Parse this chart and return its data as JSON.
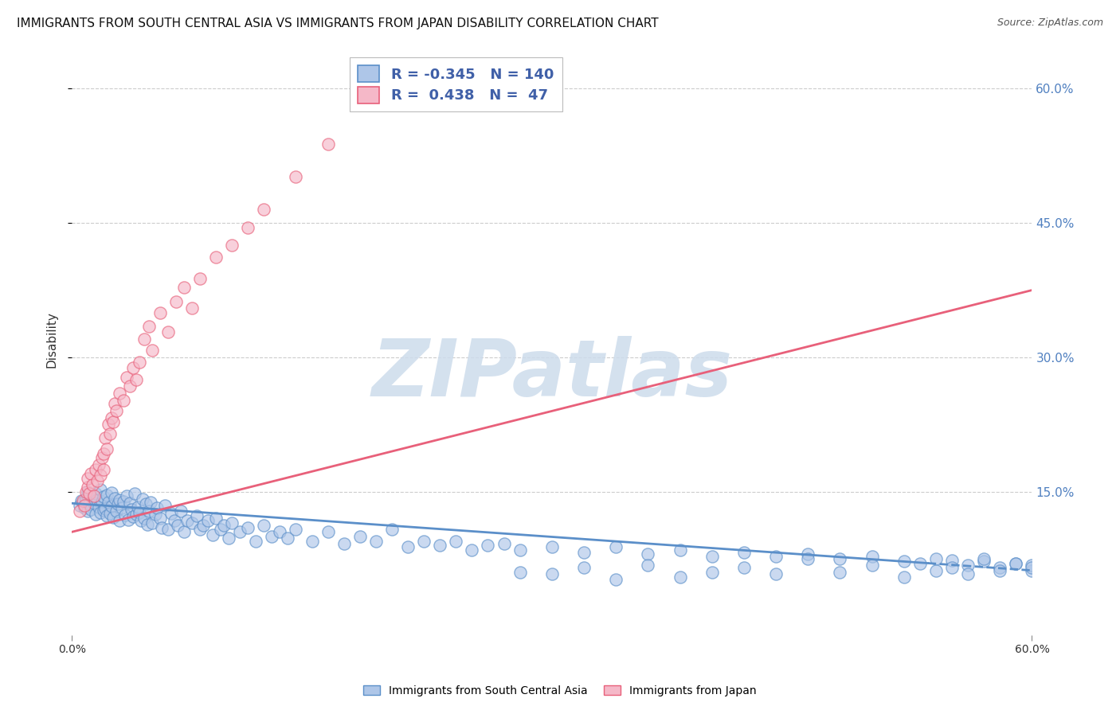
{
  "title": "IMMIGRANTS FROM SOUTH CENTRAL ASIA VS IMMIGRANTS FROM JAPAN DISABILITY CORRELATION CHART",
  "source": "Source: ZipAtlas.com",
  "ylabel": "Disability",
  "ytick_values": [
    0.15,
    0.3,
    0.45,
    0.6
  ],
  "ytick_labels": [
    "15.0%",
    "30.0%",
    "45.0%",
    "60.0%"
  ],
  "xlim": [
    0.0,
    0.6
  ],
  "ylim": [
    -0.01,
    0.65
  ],
  "legend_blue_r": "-0.345",
  "legend_blue_n": "140",
  "legend_pink_r": "0.438",
  "legend_pink_n": "47",
  "blue_face_color": "#aec6e8",
  "blue_edge_color": "#5b8fc9",
  "pink_face_color": "#f5b8c8",
  "pink_edge_color": "#e8607a",
  "watermark": "ZIPatlas",
  "watermark_color": "#cddcec",
  "legend_text_color": "#4060a8",
  "blue_scatter_x": [
    0.005,
    0.006,
    0.007,
    0.008,
    0.009,
    0.01,
    0.01,
    0.01,
    0.011,
    0.012,
    0.013,
    0.014,
    0.015,
    0.015,
    0.016,
    0.017,
    0.018,
    0.018,
    0.019,
    0.02,
    0.02,
    0.021,
    0.022,
    0.022,
    0.023,
    0.024,
    0.025,
    0.025,
    0.026,
    0.027,
    0.028,
    0.029,
    0.03,
    0.03,
    0.031,
    0.032,
    0.033,
    0.034,
    0.035,
    0.036,
    0.037,
    0.038,
    0.039,
    0.04,
    0.041,
    0.042,
    0.043,
    0.044,
    0.045,
    0.046,
    0.047,
    0.048,
    0.049,
    0.05,
    0.052,
    0.053,
    0.055,
    0.056,
    0.058,
    0.06,
    0.062,
    0.064,
    0.066,
    0.068,
    0.07,
    0.072,
    0.075,
    0.078,
    0.08,
    0.082,
    0.085,
    0.088,
    0.09,
    0.093,
    0.095,
    0.098,
    0.1,
    0.105,
    0.11,
    0.115,
    0.12,
    0.125,
    0.13,
    0.135,
    0.14,
    0.15,
    0.16,
    0.17,
    0.18,
    0.19,
    0.2,
    0.21,
    0.22,
    0.23,
    0.24,
    0.25,
    0.26,
    0.27,
    0.28,
    0.3,
    0.32,
    0.34,
    0.36,
    0.38,
    0.4,
    0.42,
    0.44,
    0.46,
    0.48,
    0.5,
    0.52,
    0.54,
    0.55,
    0.56,
    0.57,
    0.58,
    0.59,
    0.6,
    0.6,
    0.6,
    0.59,
    0.58,
    0.57,
    0.56,
    0.55,
    0.54,
    0.53,
    0.52,
    0.5,
    0.48,
    0.46,
    0.44,
    0.42,
    0.4,
    0.38,
    0.36,
    0.34,
    0.32,
    0.3,
    0.28
  ],
  "blue_scatter_y": [
    0.135,
    0.14,
    0.138,
    0.132,
    0.142,
    0.145,
    0.128,
    0.15,
    0.136,
    0.13,
    0.143,
    0.137,
    0.148,
    0.125,
    0.141,
    0.133,
    0.127,
    0.152,
    0.139,
    0.144,
    0.129,
    0.131,
    0.146,
    0.123,
    0.138,
    0.126,
    0.149,
    0.134,
    0.121,
    0.143,
    0.128,
    0.136,
    0.141,
    0.118,
    0.132,
    0.139,
    0.124,
    0.145,
    0.119,
    0.137,
    0.13,
    0.122,
    0.148,
    0.125,
    0.133,
    0.127,
    0.118,
    0.142,
    0.12,
    0.136,
    0.113,
    0.128,
    0.138,
    0.115,
    0.125,
    0.132,
    0.12,
    0.11,
    0.135,
    0.108,
    0.126,
    0.118,
    0.112,
    0.128,
    0.105,
    0.118,
    0.115,
    0.123,
    0.108,
    0.112,
    0.118,
    0.102,
    0.12,
    0.108,
    0.112,
    0.098,
    0.115,
    0.105,
    0.11,
    0.095,
    0.112,
    0.1,
    0.105,
    0.098,
    0.108,
    0.095,
    0.105,
    0.092,
    0.1,
    0.095,
    0.108,
    0.088,
    0.095,
    0.09,
    0.095,
    0.085,
    0.09,
    0.092,
    0.085,
    0.088,
    0.082,
    0.088,
    0.08,
    0.085,
    0.078,
    0.082,
    0.078,
    0.08,
    0.075,
    0.078,
    0.072,
    0.075,
    0.073,
    0.068,
    0.072,
    0.065,
    0.07,
    0.062,
    0.068,
    0.065,
    0.07,
    0.062,
    0.075,
    0.058,
    0.065,
    0.062,
    0.07,
    0.055,
    0.068,
    0.06,
    0.075,
    0.058,
    0.065,
    0.06,
    0.055,
    0.068,
    0.052,
    0.065,
    0.058,
    0.06
  ],
  "pink_scatter_x": [
    0.005,
    0.007,
    0.008,
    0.009,
    0.01,
    0.01,
    0.011,
    0.012,
    0.013,
    0.014,
    0.015,
    0.016,
    0.017,
    0.018,
    0.019,
    0.02,
    0.02,
    0.021,
    0.022,
    0.023,
    0.024,
    0.025,
    0.026,
    0.027,
    0.028,
    0.03,
    0.032,
    0.034,
    0.036,
    0.038,
    0.04,
    0.042,
    0.045,
    0.048,
    0.05,
    0.055,
    0.06,
    0.065,
    0.07,
    0.075,
    0.08,
    0.09,
    0.1,
    0.11,
    0.12,
    0.14,
    0.16
  ],
  "pink_scatter_y": [
    0.128,
    0.14,
    0.135,
    0.15,
    0.155,
    0.165,
    0.148,
    0.17,
    0.158,
    0.145,
    0.175,
    0.162,
    0.18,
    0.168,
    0.188,
    0.192,
    0.175,
    0.21,
    0.198,
    0.225,
    0.215,
    0.232,
    0.228,
    0.248,
    0.24,
    0.26,
    0.252,
    0.278,
    0.268,
    0.288,
    0.275,
    0.295,
    0.32,
    0.335,
    0.308,
    0.35,
    0.328,
    0.362,
    0.378,
    0.355,
    0.388,
    0.412,
    0.425,
    0.445,
    0.465,
    0.502,
    0.538
  ],
  "blue_trend_x0": 0.0,
  "blue_trend_x1": 0.6,
  "blue_trend_y0": 0.137,
  "blue_trend_y1": 0.062,
  "blue_trend_solid_x1": 0.535,
  "pink_trend_x0": 0.0,
  "pink_trend_x1": 0.6,
  "pink_trend_y0": 0.105,
  "pink_trend_y1": 0.375,
  "grid_color": "#cccccc",
  "bg_color": "#ffffff",
  "title_fontsize": 11,
  "tick_fontsize": 10,
  "legend_fontsize": 13,
  "scatter_alpha": 0.65,
  "scatter_linewidth": 1.0
}
